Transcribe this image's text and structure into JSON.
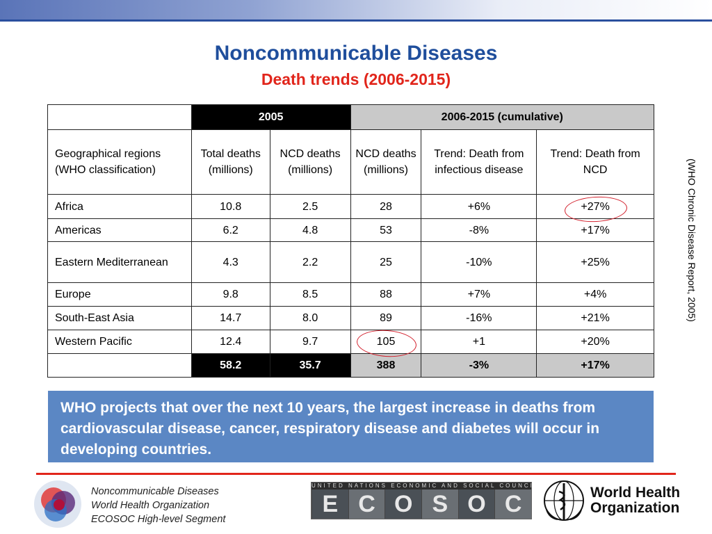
{
  "slide": {
    "title": "Noncommunicable Diseases",
    "subtitle": "Death trends (2006-2015)"
  },
  "colors": {
    "title": "#1f4e9c",
    "subtitle": "#e1251b",
    "callout_bg": "#5b87c4",
    "header_black": "#000000",
    "header_grey": "#c9c9c9",
    "highlight_circle": "#d21f2b"
  },
  "table": {
    "group_headers": {
      "col_2005": "2005",
      "col_cumulative": "2006-2015 (cumulative)"
    },
    "columns": [
      "Geographical regions (WHO classification)",
      "Total deaths (millions)",
      "NCD deaths (millions)",
      "NCD deaths (millions)",
      "Trend: Death from infectious disease",
      "Trend: Death from NCD"
    ],
    "rows": [
      [
        "Africa",
        "10.8",
        "2.5",
        "28",
        "+6%",
        "+27%"
      ],
      [
        "Americas",
        "6.2",
        "4.8",
        "53",
        "-8%",
        "+17%"
      ],
      [
        "Eastern Mediterranean",
        "4.3",
        "2.2",
        "25",
        "-10%",
        "+25%"
      ],
      [
        "Europe",
        "9.8",
        "8.5",
        "88",
        "+7%",
        "+4%"
      ],
      [
        "South-East Asia",
        "14.7",
        "8.0",
        "89",
        "-16%",
        "+21%"
      ],
      [
        "Western Pacific",
        "12.4",
        "9.7",
        "105",
        "+1",
        "+20%"
      ]
    ],
    "totals": [
      "",
      "58.2",
      "35.7",
      "388",
      "-3%",
      "+17%"
    ]
  },
  "source_note": "(WHO Chronic Disease Report, 2005)",
  "callout": "WHO projects that over the next 10 years, the largest increase in deaths from cardiovascular disease, cancer, respiratory disease and diabetes will occur in developing countries.",
  "footer": {
    "line1": "Noncommunicable Diseases",
    "line2": "World Health Organization",
    "line3": "ECOSOC High-level Segment",
    "ecosoc_banner": "UNITED NATIONS ECONOMIC AND SOCIAL COUNCIL",
    "ecosoc_letters": [
      "E",
      "C",
      "O",
      "S",
      "O",
      "C"
    ],
    "who_line1": "World Health",
    "who_line2": "Organization"
  }
}
